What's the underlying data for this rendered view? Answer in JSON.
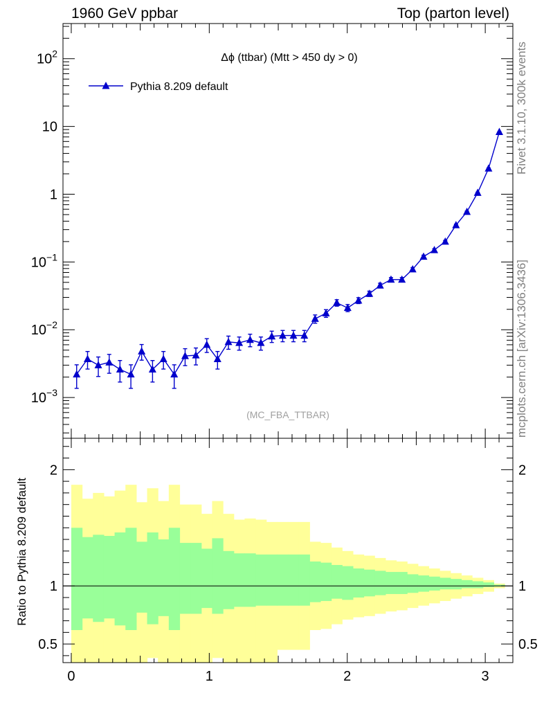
{
  "header": {
    "left": "1960 GeV ppbar",
    "right": "Top (parton level)"
  },
  "side_labels": {
    "rivet": "Rivet 3.1.10,  300k events",
    "mcplots": "mcplots.cern.ch [arXiv:1306.3436]"
  },
  "chart_data": [
    {
      "type": "line",
      "title": "Δϕ (ttbar) (Mtt > 450 dy > 0)",
      "watermark": "(MC_FBA_TTBAR)",
      "xlabel": "",
      "ylabel": "",
      "yscale": "log",
      "xlim": [
        -0.06,
        3.2
      ],
      "ylim": [
        0.00025,
        330
      ],
      "y_tick_labels": [
        "10^-3",
        "10^-2",
        "10^-1",
        "1",
        "10",
        "10^2"
      ],
      "legend": {
        "placement": "top-left",
        "entries": [
          "Pythia 8.209 default"
        ]
      },
      "series": [
        {
          "name": "Pythia 8.209 default",
          "color": "#0000cc",
          "marker": "triangle-up",
          "x": [
            0.039,
            0.118,
            0.196,
            0.275,
            0.353,
            0.432,
            0.51,
            0.589,
            0.668,
            0.746,
            0.825,
            0.903,
            0.982,
            1.06,
            1.139,
            1.217,
            1.296,
            1.374,
            1.453,
            1.532,
            1.61,
            1.689,
            1.767,
            1.846,
            1.924,
            2.003,
            2.081,
            2.16,
            2.238,
            2.317,
            2.396,
            2.474,
            2.553,
            2.631,
            2.71,
            2.788,
            2.867,
            2.945,
            3.024,
            3.102
          ],
          "y": [
            0.0022,
            0.0037,
            0.003,
            0.0033,
            0.0026,
            0.0022,
            0.0048,
            0.0026,
            0.0037,
            0.0022,
            0.0041,
            0.0042,
            0.006,
            0.0037,
            0.0066,
            0.0064,
            0.0071,
            0.0064,
            0.008,
            0.0082,
            0.0082,
            0.0082,
            0.0145,
            0.0175,
            0.025,
            0.021,
            0.027,
            0.034,
            0.045,
            0.055,
            0.055,
            0.078,
            0.12,
            0.15,
            0.2,
            0.35,
            0.55,
            1.05,
            2.4,
            8.3
          ],
          "err_rel": [
            0.38,
            0.29,
            0.32,
            0.31,
            0.35,
            0.38,
            0.26,
            0.35,
            0.29,
            0.38,
            0.28,
            0.28,
            0.23,
            0.29,
            0.22,
            0.22,
            0.21,
            0.22,
            0.19,
            0.19,
            0.19,
            0.19,
            0.14,
            0.13,
            0.11,
            0.12,
            0.1,
            0.09,
            0.08,
            0.07,
            0.07,
            0.06,
            0.05,
            0.045,
            0.04,
            0.03,
            0.025,
            0.02,
            0.015,
            0.01
          ]
        }
      ]
    },
    {
      "type": "area",
      "title": "",
      "xlabel": "",
      "ylabel": "Ratio to Pythia 8.209 default",
      "xlim": [
        -0.06,
        3.2
      ],
      "ylim": [
        0.34,
        2.27
      ],
      "x_ticks": [
        0,
        1,
        2,
        3
      ],
      "y_ticks": [
        0.5,
        1,
        2
      ],
      "reference_line": 1,
      "bin_edges": [
        0.0,
        0.0785,
        0.157,
        0.2355,
        0.314,
        0.3925,
        0.471,
        0.5495,
        0.628,
        0.7065,
        0.785,
        0.8635,
        0.942,
        1.0205,
        1.099,
        1.1775,
        1.256,
        1.3345,
        1.413,
        1.4915,
        1.57,
        1.6485,
        1.727,
        1.8055,
        1.884,
        1.9625,
        2.041,
        2.1195,
        2.198,
        2.2765,
        2.355,
        2.4335,
        2.512,
        2.5905,
        2.669,
        2.7475,
        2.826,
        2.9045,
        2.983,
        3.0615,
        3.14
      ],
      "bands": [
        {
          "name": "stat+syst",
          "color": "#ffff99",
          "upper": [
            1.87,
            1.75,
            1.8,
            1.77,
            1.82,
            1.87,
            1.72,
            1.84,
            1.73,
            1.87,
            1.7,
            1.7,
            1.62,
            1.73,
            1.62,
            1.57,
            1.58,
            1.57,
            1.55,
            1.55,
            1.55,
            1.55,
            1.38,
            1.37,
            1.33,
            1.3,
            1.27,
            1.26,
            1.24,
            1.22,
            1.21,
            1.19,
            1.17,
            1.15,
            1.13,
            1.11,
            1.09,
            1.07,
            1.05,
            1.02
          ],
          "lower": [
            0.3,
            0.3,
            0.3,
            0.3,
            0.3,
            0.3,
            0.3,
            0.38,
            0.3,
            0.3,
            0.3,
            0.3,
            0.3,
            0.38,
            0.3,
            0.3,
            0.3,
            0.3,
            0.3,
            0.45,
            0.45,
            0.45,
            0.62,
            0.63,
            0.67,
            0.71,
            0.73,
            0.74,
            0.76,
            0.78,
            0.79,
            0.81,
            0.83,
            0.85,
            0.87,
            0.89,
            0.91,
            0.93,
            0.95,
            0.98
          ]
        },
        {
          "name": "stat",
          "color": "#99ff99",
          "upper": [
            1.5,
            1.42,
            1.44,
            1.43,
            1.46,
            1.5,
            1.38,
            1.46,
            1.4,
            1.5,
            1.37,
            1.37,
            1.32,
            1.41,
            1.3,
            1.28,
            1.28,
            1.27,
            1.27,
            1.27,
            1.27,
            1.27,
            1.21,
            1.2,
            1.18,
            1.17,
            1.15,
            1.14,
            1.13,
            1.12,
            1.12,
            1.1,
            1.09,
            1.08,
            1.07,
            1.06,
            1.05,
            1.04,
            1.03,
            1.01
          ],
          "lower": [
            0.62,
            0.72,
            0.69,
            0.72,
            0.66,
            0.62,
            0.77,
            0.67,
            0.74,
            0.62,
            0.76,
            0.76,
            0.81,
            0.76,
            0.8,
            0.82,
            0.82,
            0.83,
            0.83,
            0.83,
            0.83,
            0.83,
            0.86,
            0.87,
            0.89,
            0.88,
            0.9,
            0.91,
            0.92,
            0.93,
            0.93,
            0.94,
            0.95,
            0.96,
            0.97,
            0.97,
            0.98,
            0.98,
            0.99,
            0.995
          ]
        }
      ]
    }
  ]
}
